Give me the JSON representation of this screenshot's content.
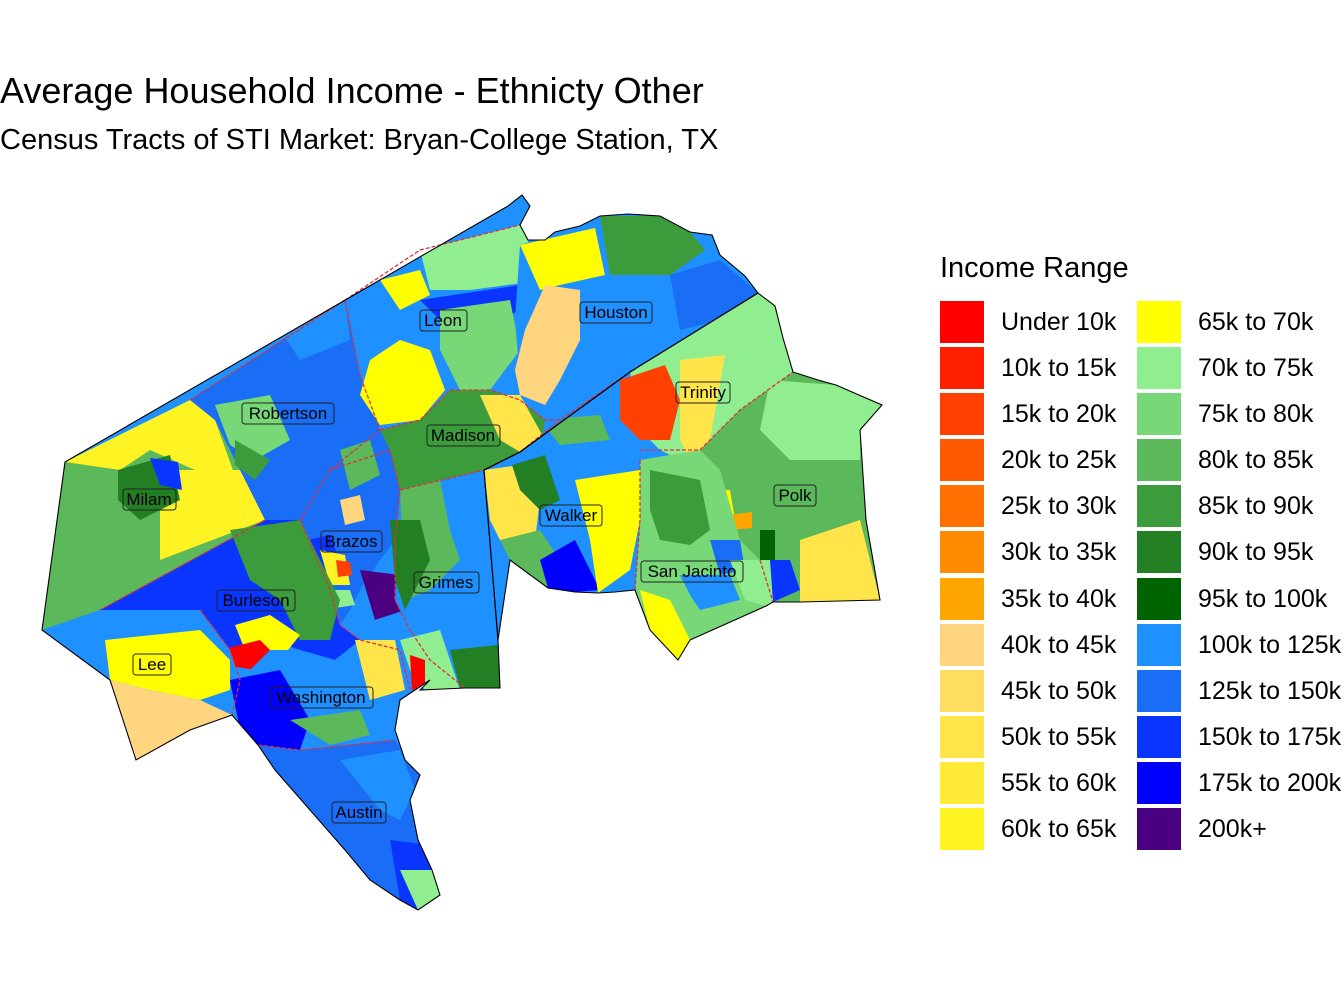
{
  "title": "Average Household Income - Ethnicty Other",
  "subtitle": "Census Tracts of STI Market: Bryan-College Station, TX",
  "legend": {
    "title": "Income Range",
    "items": [
      {
        "label": "Under 10k",
        "color": "#FF0000"
      },
      {
        "label": "10k to 15k",
        "color": "#FF2000"
      },
      {
        "label": "15k to 20k",
        "color": "#FF4000"
      },
      {
        "label": "20k to 25k",
        "color": "#FF5A00"
      },
      {
        "label": "25k to 30k",
        "color": "#FF7000"
      },
      {
        "label": "30k to 35k",
        "color": "#FF8C00"
      },
      {
        "label": "35k to 40k",
        "color": "#FFA500"
      },
      {
        "label": "40k to 45k",
        "color": "#FFD580"
      },
      {
        "label": "45k to 50k",
        "color": "#FFDD60"
      },
      {
        "label": "50k to 55k",
        "color": "#FFE44A"
      },
      {
        "label": "55k to 60k",
        "color": "#FFEB38"
      },
      {
        "label": "60k to 65k",
        "color": "#FFF324"
      },
      {
        "label": "65k to 70k",
        "color": "#FFFF00"
      },
      {
        "label": "70k to 75k",
        "color": "#90EE90"
      },
      {
        "label": "75k to 80k",
        "color": "#78D878"
      },
      {
        "label": "80k to 85k",
        "color": "#5BB85B"
      },
      {
        "label": "85k to 90k",
        "color": "#3C9C3C"
      },
      {
        "label": "90k to 95k",
        "color": "#237F23"
      },
      {
        "label": "95k to 100k",
        "color": "#006400"
      },
      {
        "label": "100k to 125k",
        "color": "#1E90FF"
      },
      {
        "label": "125k to 150k",
        "color": "#1A6EF5"
      },
      {
        "label": "150k to 175k",
        "color": "#0A35FF"
      },
      {
        "label": "175k to 200k",
        "color": "#0000FF"
      },
      {
        "label": "200k+",
        "color": "#4B0082"
      }
    ]
  },
  "counties": [
    "Leon",
    "Houston",
    "Robertson",
    "Madison",
    "Trinity",
    "Milam",
    "Walker",
    "Polk",
    "Brazos",
    "Grimes",
    "San Jacinto",
    "Burleson",
    "Lee",
    "Washington",
    "Austin"
  ],
  "county_border_color": "#E0303A"
}
